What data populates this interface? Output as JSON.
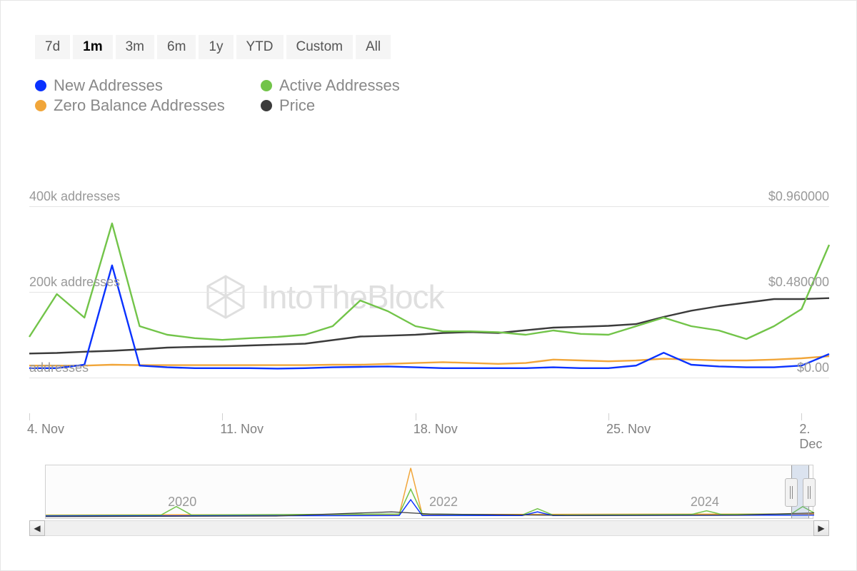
{
  "timeRange": {
    "buttons": [
      "7d",
      "1m",
      "3m",
      "6m",
      "1y",
      "YTD",
      "Custom",
      "All"
    ],
    "active": "1m"
  },
  "legend": [
    {
      "label": "New Addresses",
      "color": "#0a32ff"
    },
    {
      "label": "Active Addresses",
      "color": "#72c449"
    },
    {
      "label": "Zero Balance Addresses",
      "color": "#f1a63a"
    },
    {
      "label": "Price",
      "color": "#3b3b3b"
    }
  ],
  "watermark": "IntoTheBlock",
  "chart": {
    "type": "line",
    "xStart": 4,
    "xEnd": 33,
    "xTicks": [
      {
        "value": 4,
        "label": "4. Nov"
      },
      {
        "value": 11,
        "label": "11. Nov"
      },
      {
        "value": 18,
        "label": "18. Nov"
      },
      {
        "value": 25,
        "label": "25. Nov"
      },
      {
        "value": 32,
        "label": "2. Dec"
      }
    ],
    "leftAxis": {
      "min": 0,
      "max": 400000,
      "ticks": [
        {
          "value": 0,
          "label": "addresses"
        },
        {
          "value": 200000,
          "label": "200k addresses"
        },
        {
          "value": 400000,
          "label": "400k addresses"
        }
      ]
    },
    "rightAxis": {
      "min": 0,
      "max": 0.96,
      "ticks": [
        {
          "value": 0,
          "label": "$0.00"
        },
        {
          "value": 0.48,
          "label": "$0.480000"
        },
        {
          "value": 0.96,
          "label": "$0.960000"
        }
      ]
    },
    "plotHeight": 240,
    "plotTop": 30,
    "gridColor": "#e5e5e5",
    "background": "#ffffff",
    "lineWidth": 2.4,
    "series": {
      "new_addresses": {
        "color": "#0a32ff",
        "axis": "left",
        "data": [
          [
            4,
            22000
          ],
          [
            5,
            22000
          ],
          [
            6,
            30000
          ],
          [
            7,
            262000
          ],
          [
            8,
            28000
          ],
          [
            9,
            24000
          ],
          [
            10,
            22000
          ],
          [
            11,
            22000
          ],
          [
            12,
            22000
          ],
          [
            13,
            21000
          ],
          [
            14,
            22000
          ],
          [
            15,
            24000
          ],
          [
            16,
            25000
          ],
          [
            17,
            26000
          ],
          [
            18,
            24000
          ],
          [
            19,
            22000
          ],
          [
            20,
            22000
          ],
          [
            21,
            22000
          ],
          [
            22,
            22000
          ],
          [
            23,
            24000
          ],
          [
            24,
            22000
          ],
          [
            25,
            22000
          ],
          [
            26,
            28000
          ],
          [
            27,
            58000
          ],
          [
            28,
            30000
          ],
          [
            29,
            26000
          ],
          [
            30,
            24000
          ],
          [
            31,
            24000
          ],
          [
            32,
            28000
          ],
          [
            33,
            55000
          ]
        ]
      },
      "active_addresses": {
        "color": "#72c449",
        "axis": "left",
        "data": [
          [
            4,
            95000
          ],
          [
            5,
            195000
          ],
          [
            6,
            140000
          ],
          [
            7,
            360000
          ],
          [
            8,
            120000
          ],
          [
            9,
            100000
          ],
          [
            10,
            92000
          ],
          [
            11,
            88000
          ],
          [
            12,
            92000
          ],
          [
            13,
            95000
          ],
          [
            14,
            100000
          ],
          [
            15,
            120000
          ],
          [
            16,
            180000
          ],
          [
            17,
            155000
          ],
          [
            18,
            120000
          ],
          [
            19,
            108000
          ],
          [
            20,
            108000
          ],
          [
            21,
            106000
          ],
          [
            22,
            100000
          ],
          [
            23,
            110000
          ],
          [
            24,
            102000
          ],
          [
            25,
            100000
          ],
          [
            26,
            120000
          ],
          [
            27,
            140000
          ],
          [
            28,
            120000
          ],
          [
            29,
            110000
          ],
          [
            30,
            90000
          ],
          [
            31,
            120000
          ],
          [
            32,
            160000
          ],
          [
            33,
            310000
          ]
        ]
      },
      "zero_balance": {
        "color": "#f1a63a",
        "axis": "left",
        "data": [
          [
            4,
            28000
          ],
          [
            5,
            28000
          ],
          [
            6,
            28000
          ],
          [
            7,
            30000
          ],
          [
            8,
            29000
          ],
          [
            9,
            29000
          ],
          [
            10,
            29000
          ],
          [
            11,
            29000
          ],
          [
            12,
            29000
          ],
          [
            13,
            29000
          ],
          [
            14,
            29000
          ],
          [
            15,
            30000
          ],
          [
            16,
            30000
          ],
          [
            17,
            32000
          ],
          [
            18,
            34000
          ],
          [
            19,
            36000
          ],
          [
            20,
            34000
          ],
          [
            21,
            32000
          ],
          [
            22,
            34000
          ],
          [
            23,
            42000
          ],
          [
            24,
            40000
          ],
          [
            25,
            38000
          ],
          [
            26,
            40000
          ],
          [
            27,
            44000
          ],
          [
            28,
            42000
          ],
          [
            29,
            40000
          ],
          [
            30,
            40000
          ],
          [
            31,
            42000
          ],
          [
            32,
            45000
          ],
          [
            33,
            50000
          ]
        ]
      },
      "price": {
        "color": "#3b3b3b",
        "axis": "right",
        "data": [
          [
            4,
            0.135
          ],
          [
            5,
            0.138
          ],
          [
            6,
            0.145
          ],
          [
            7,
            0.15
          ],
          [
            8,
            0.158
          ],
          [
            9,
            0.168
          ],
          [
            10,
            0.172
          ],
          [
            11,
            0.175
          ],
          [
            12,
            0.18
          ],
          [
            13,
            0.185
          ],
          [
            14,
            0.19
          ],
          [
            15,
            0.21
          ],
          [
            16,
            0.23
          ],
          [
            17,
            0.235
          ],
          [
            18,
            0.24
          ],
          [
            19,
            0.25
          ],
          [
            20,
            0.255
          ],
          [
            21,
            0.25
          ],
          [
            22,
            0.265
          ],
          [
            23,
            0.28
          ],
          [
            24,
            0.285
          ],
          [
            25,
            0.29
          ],
          [
            26,
            0.3
          ],
          [
            27,
            0.34
          ],
          [
            28,
            0.375
          ],
          [
            29,
            0.4
          ],
          [
            30,
            0.42
          ],
          [
            31,
            0.44
          ],
          [
            32,
            0.44
          ],
          [
            33,
            0.445
          ]
        ]
      }
    }
  },
  "miniChart": {
    "years": [
      {
        "label": "2020",
        "posPct": 16
      },
      {
        "label": "2022",
        "posPct": 50
      },
      {
        "label": "2024",
        "posPct": 84
      }
    ],
    "selection": {
      "leftPct": 97.2,
      "widthPct": 2.3
    },
    "seriesColors": {
      "orange": "#f1a63a",
      "green": "#72c449",
      "blue": "#0a32ff",
      "dark": "#3b3b3b"
    }
  }
}
